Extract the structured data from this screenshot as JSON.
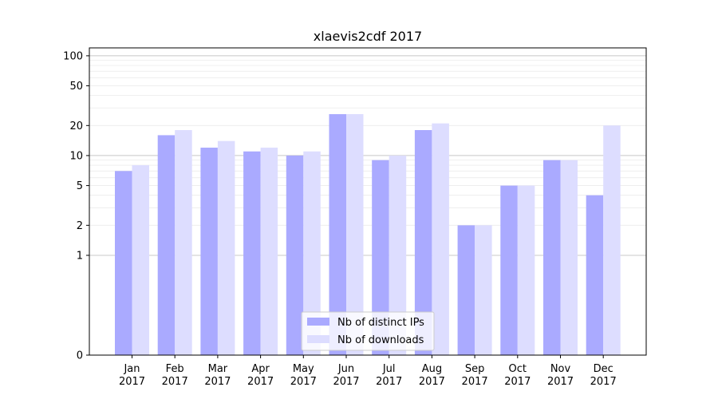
{
  "chart_data": {
    "type": "bar",
    "title": "xlaevis2cdf 2017",
    "xlabel": "",
    "ylabel": "",
    "yscale": "symlog",
    "ylim": [
      0,
      120
    ],
    "yticks": [
      0,
      1,
      2,
      5,
      10,
      20,
      50,
      100
    ],
    "ytick_labels": [
      "0",
      "1",
      "2",
      "5",
      "10",
      "20",
      "50",
      "100"
    ],
    "categories": [
      "Jan\n2017",
      "Feb\n2017",
      "Mar\n2017",
      "Apr\n2017",
      "May\n2017",
      "Jun\n2017",
      "Jul\n2017",
      "Aug\n2017",
      "Sep\n2017",
      "Oct\n2017",
      "Nov\n2017",
      "Dec\n2017"
    ],
    "series": [
      {
        "name": "Nb of distinct IPs",
        "color": "#aaaaff",
        "values": [
          7,
          16,
          12,
          11,
          10,
          26,
          9,
          18,
          2,
          5,
          9,
          4
        ]
      },
      {
        "name": "Nb of downloads",
        "color": "#ddddff",
        "values": [
          8,
          18,
          14,
          12,
          11,
          26,
          10,
          21,
          2,
          5,
          9,
          20
        ]
      }
    ],
    "grid": true,
    "legend_position": "bottom-center"
  }
}
